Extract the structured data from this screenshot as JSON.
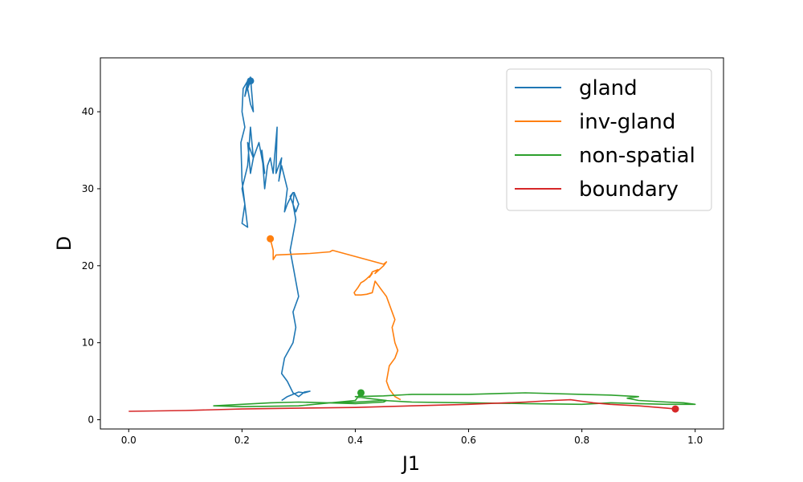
{
  "chart_data": {
    "type": "line",
    "title": "",
    "xlabel": "J1",
    "ylabel": "D",
    "xlim": [
      -0.05,
      1.05
    ],
    "ylim": [
      -1.2,
      47
    ],
    "xticks": [
      0.0,
      0.2,
      0.4,
      0.6,
      0.8,
      1.0
    ],
    "xtick_labels": [
      "0.0",
      "0.2",
      "0.4",
      "0.6",
      "0.8",
      "1.0"
    ],
    "yticks": [
      0,
      10,
      20,
      30,
      40
    ],
    "ytick_labels": [
      "0",
      "10",
      "20",
      "30",
      "40"
    ],
    "grid": false,
    "legend_position": "top-right",
    "series": [
      {
        "name": "gland",
        "color": "#1f77b4",
        "x": [
          0.27,
          0.28,
          0.29,
          0.3,
          0.31,
          0.32,
          0.31,
          0.3,
          0.29,
          0.28,
          0.27,
          0.275,
          0.29,
          0.295,
          0.29,
          0.3,
          0.295,
          0.29,
          0.285,
          0.29,
          0.295,
          0.29,
          0.292,
          0.3,
          0.295,
          0.285,
          0.29,
          0.28,
          0.275,
          0.28,
          0.27,
          0.265,
          0.27,
          0.26,
          0.262,
          0.255,
          0.25,
          0.245,
          0.24,
          0.235,
          0.24,
          0.23,
          0.22,
          0.215,
          0.21,
          0.22,
          0.215,
          0.21,
          0.2,
          0.205,
          0.2,
          0.21,
          0.2,
          0.198,
          0.205,
          0.2,
          0.202,
          0.21,
          0.205,
          0.215,
          0.22,
          0.215,
          0.21,
          0.215
        ],
        "y": [
          2.5,
          3.0,
          3.3,
          3.6,
          3.5,
          3.7,
          3.6,
          3.0,
          3.5,
          5.0,
          6.0,
          8.0,
          10.0,
          12.0,
          14.0,
          16.0,
          18.0,
          20.0,
          22.0,
          24.0,
          26.0,
          28.0,
          29.5,
          28.0,
          27.0,
          29.0,
          29.5,
          28.0,
          27.0,
          30.0,
          33.0,
          31.0,
          34.0,
          32.0,
          38.0,
          32.0,
          34.0,
          33.0,
          30.0,
          35.0,
          32.0,
          36.0,
          34.0,
          32.0,
          36.0,
          34.0,
          38.0,
          33.0,
          30.0,
          28.0,
          25.5,
          25.0,
          31.0,
          36.0,
          38.0,
          40.0,
          43.0,
          44.0,
          42.0,
          44.5,
          40.0,
          41.0,
          43.0,
          44.0
        ],
        "start": [
          0.215,
          44.0
        ]
      },
      {
        "name": "inv-gland",
        "color": "#ff7f0e",
        "x": [
          0.48,
          0.47,
          0.46,
          0.455,
          0.46,
          0.47,
          0.475,
          0.47,
          0.465,
          0.47,
          0.465,
          0.46,
          0.455,
          0.45,
          0.445,
          0.44,
          0.435,
          0.43,
          0.42,
          0.41,
          0.4,
          0.398,
          0.405,
          0.41,
          0.415,
          0.42,
          0.43,
          0.425,
          0.43,
          0.44,
          0.435,
          0.45,
          0.455,
          0.45,
          0.36,
          0.355,
          0.32,
          0.29,
          0.26,
          0.255,
          0.255,
          0.25
        ],
        "y": [
          2.6,
          3.0,
          4.0,
          5.0,
          7.0,
          8.0,
          9.0,
          10.0,
          12.0,
          13.0,
          14.0,
          15.0,
          16.0,
          16.5,
          17.0,
          17.5,
          18.0,
          16.5,
          16.3,
          16.2,
          16.2,
          16.5,
          17.2,
          17.8,
          18.0,
          18.3,
          19.0,
          18.5,
          19.2,
          19.5,
          19.0,
          20.0,
          20.5,
          20.2,
          22.0,
          21.8,
          21.6,
          21.5,
          21.4,
          20.8,
          22.0,
          23.5
        ],
        "start": [
          0.25,
          23.5
        ]
      },
      {
        "name": "non-spatial",
        "color": "#2ca02c",
        "x": [
          0.15,
          0.2,
          0.25,
          0.3,
          0.35,
          0.4,
          0.45,
          0.455,
          0.42,
          0.4,
          0.45,
          0.5,
          0.6,
          0.7,
          0.8,
          0.85,
          0.9,
          0.88,
          0.9,
          0.95,
          0.98,
          1.0,
          0.95,
          0.9,
          0.85,
          0.8,
          0.7,
          0.6,
          0.5,
          0.45,
          0.4,
          0.35,
          0.3,
          0.25,
          0.2,
          0.15,
          0.2,
          0.3,
          0.4,
          0.41
        ],
        "y": [
          1.8,
          2.0,
          2.2,
          2.3,
          2.2,
          2.1,
          2.3,
          2.5,
          2.8,
          3.0,
          3.1,
          3.3,
          3.3,
          3.5,
          3.3,
          3.2,
          3.0,
          2.8,
          2.5,
          2.3,
          2.2,
          2.0,
          2.0,
          2.1,
          2.2,
          2.0,
          2.1,
          2.2,
          2.3,
          2.5,
          2.3,
          2.2,
          2.3,
          2.2,
          2.0,
          1.8,
          1.7,
          1.8,
          2.5,
          3.5
        ],
        "start": [
          0.41,
          3.5
        ]
      },
      {
        "name": "boundary",
        "color": "#d62728",
        "x": [
          0.0,
          0.1,
          0.2,
          0.3,
          0.4,
          0.5,
          0.6,
          0.7,
          0.75,
          0.78,
          0.8,
          0.82,
          0.85,
          0.9,
          0.95,
          0.965
        ],
        "y": [
          1.1,
          1.2,
          1.4,
          1.5,
          1.6,
          1.8,
          2.0,
          2.3,
          2.5,
          2.6,
          2.4,
          2.2,
          2.0,
          1.8,
          1.5,
          1.4
        ],
        "start": [
          0.965,
          1.4
        ]
      }
    ]
  }
}
